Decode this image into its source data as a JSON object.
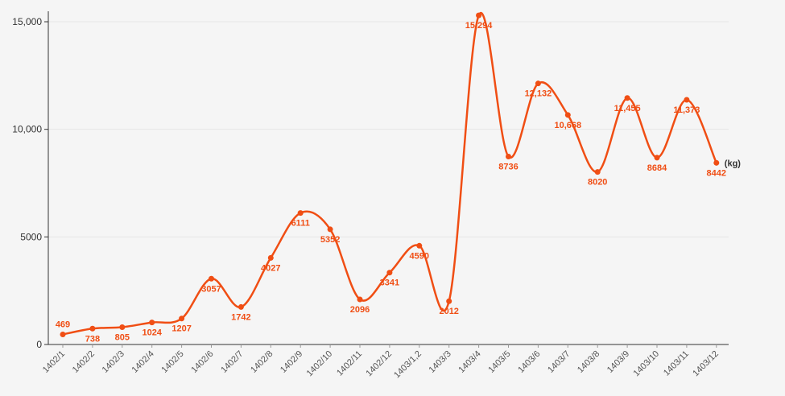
{
  "chart_data": {
    "type": "line",
    "title": "",
    "xlabel": "",
    "ylabel": "",
    "unit_label": "(kg)",
    "ylim": [
      0,
      15300
    ],
    "y_ticks": [
      {
        "value": 0,
        "label": "0"
      },
      {
        "value": 5000,
        "label": "5000"
      },
      {
        "value": 10000,
        "label": "10,000"
      },
      {
        "value": 15000,
        "label": "15,000"
      }
    ],
    "grid": true,
    "legend": "none",
    "line_color": "#f04e14",
    "categories": [
      "1402/1",
      "1402/2",
      "1402/3",
      "1402/4",
      "1402/5",
      "1402/6",
      "1402/7",
      "1402/8",
      "1402/9",
      "1402/10",
      "1402/11",
      "1402/12",
      "1403/1,2",
      "1403/3",
      "1403/4",
      "1403/5",
      "1403/6",
      "1403/7",
      "1403/8",
      "1403/9",
      "1403/10",
      "1403/11",
      "1403/12"
    ],
    "values": [
      469,
      738,
      805,
      1024,
      1207,
      3057,
      1742,
      4027,
      6111,
      5352,
      2096,
      3341,
      4590,
      2012,
      15294,
      8736,
      12132,
      10668,
      8020,
      11455,
      8684,
      11373,
      8442
    ],
    "value_labels": [
      "469",
      "738",
      "805",
      "1024",
      "1207",
      "3057",
      "1742",
      "4027",
      "6111",
      "5352",
      "2096",
      "3341",
      "4590",
      "2012",
      "15,294",
      "8736",
      "12,132",
      "10,668",
      "8020",
      "11,455",
      "8684",
      "11,373",
      "8442"
    ],
    "label_positions": [
      "above",
      "below",
      "below",
      "below",
      "below",
      "below",
      "below",
      "below",
      "below",
      "below",
      "below",
      "below",
      "below",
      "below",
      "below",
      "below",
      "below",
      "below",
      "below",
      "below",
      "below",
      "below",
      "below"
    ]
  }
}
